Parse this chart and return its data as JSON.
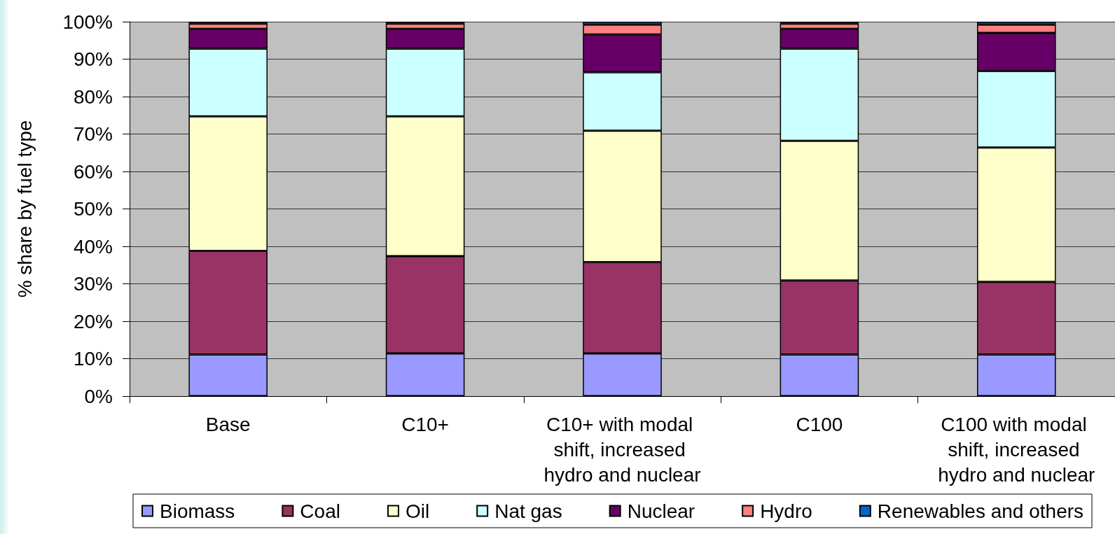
{
  "chart_data": {
    "type": "bar",
    "stacked": true,
    "ylabel": "% share by fuel type",
    "categories": [
      "Base",
      "C10+",
      "C10+ with modal shift, increased hydro and nuclear",
      "C100",
      "C100 with modal shift, increased hydro and nuclear"
    ],
    "series": [
      {
        "name": "Biomass",
        "color": "#9999ff",
        "values": [
          11.1,
          11.4,
          11.4,
          11.1,
          11.1
        ]
      },
      {
        "name": "Coal",
        "color": "#993366",
        "values": [
          27.7,
          26.0,
          24.4,
          19.8,
          19.4
        ]
      },
      {
        "name": "Oil",
        "color": "#ffffcc",
        "values": [
          35.9,
          37.3,
          35.1,
          37.3,
          35.9
        ]
      },
      {
        "name": "Nat gas",
        "color": "#ccffff",
        "values": [
          18.1,
          18.1,
          15.6,
          24.6,
          20.4
        ]
      },
      {
        "name": "Nuclear",
        "color": "#660066",
        "values": [
          5.3,
          5.3,
          10.1,
          5.3,
          10.2
        ]
      },
      {
        "name": "Hydro",
        "color": "#ff8080",
        "values": [
          1.4,
          1.4,
          2.6,
          1.4,
          2.2
        ]
      },
      {
        "name": "Renewables and others",
        "color": "#0066cc",
        "values": [
          0.5,
          0.5,
          0.8,
          0.5,
          0.8
        ]
      }
    ],
    "ylim": [
      0,
      100
    ],
    "yticks": [
      {
        "value": 0,
        "label": "0%"
      },
      {
        "value": 10,
        "label": "10%"
      },
      {
        "value": 20,
        "label": "20%"
      },
      {
        "value": 30,
        "label": "30%"
      },
      {
        "value": 40,
        "label": "40%"
      },
      {
        "value": 50,
        "label": "50%"
      },
      {
        "value": 60,
        "label": "60%"
      },
      {
        "value": 70,
        "label": "70%"
      },
      {
        "value": 80,
        "label": "80%"
      },
      {
        "value": 90,
        "label": "90%"
      },
      {
        "value": 100,
        "label": "100%"
      }
    ],
    "grid": "y",
    "legend": "bottom"
  }
}
